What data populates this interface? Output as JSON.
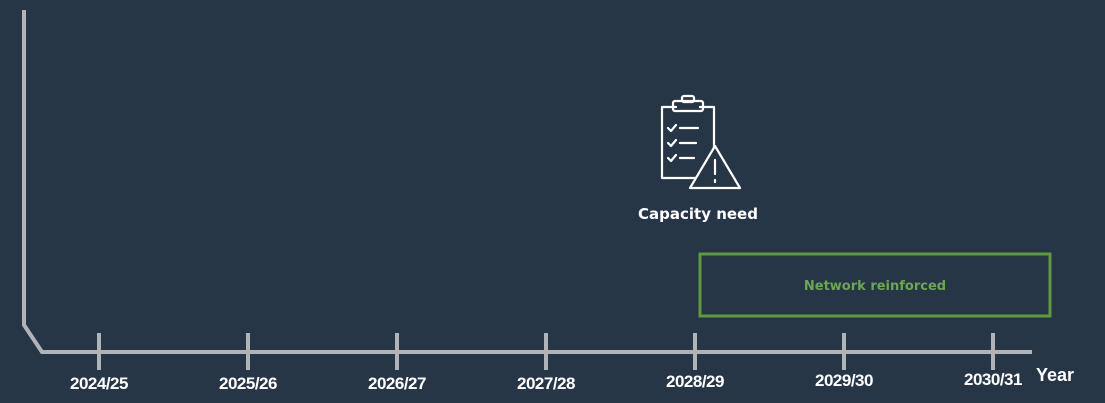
{
  "timeline": {
    "years": [
      "2024/25",
      "2025/26",
      "2026/27",
      "2027/28",
      "2028/29",
      "2029/30",
      "2030/31"
    ],
    "axis_label": "Year"
  },
  "annotation": {
    "label": "Capacity need"
  },
  "box": {
    "label": "Network reinforced"
  }
}
